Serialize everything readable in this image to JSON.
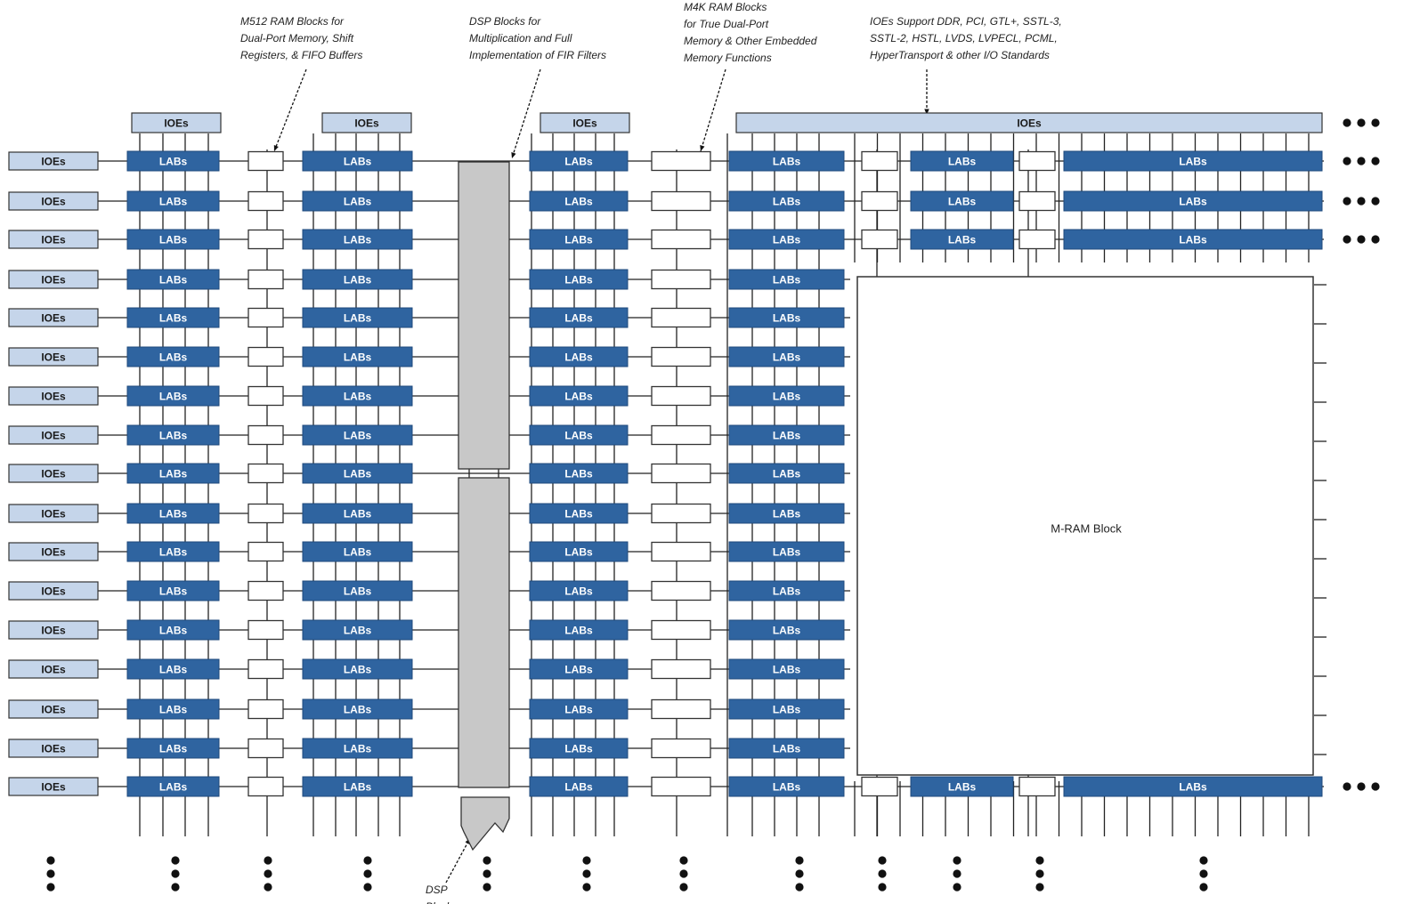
{
  "labels": {
    "ioes": "IOEs",
    "labs": "LABs",
    "mram": "M-RAM Block"
  },
  "annotations": {
    "m512": [
      "M512 RAM Blocks for",
      "Dual-Port Memory, Shift",
      "Registers, & FIFO Buffers"
    ],
    "dsp_top": [
      "DSP Blocks for",
      "Multiplication and Full",
      "Implementation of FIR Filters"
    ],
    "m4k": [
      "M4K RAM Blocks",
      "for True Dual-Port",
      "Memory & Other Embedded",
      "Memory Functions"
    ],
    "ioe_std": [
      "IOEs Support DDR, PCI, GTL+, SSTL-3,",
      "SSTL-2, HSTL, LVDS, LVPECL, PCML,",
      "HyperTransport & other I/O Standards"
    ],
    "dsp_bottom": [
      "DSP",
      "Block"
    ]
  },
  "colors": {
    "lab_fill": "#2f64a0",
    "ioe_fill": "#c5d5ea",
    "dsp_fill": "#c8c8c8",
    "line": "#222222",
    "lab_text": "#ffffff",
    "ioe_text": "#1a1a1a"
  }
}
